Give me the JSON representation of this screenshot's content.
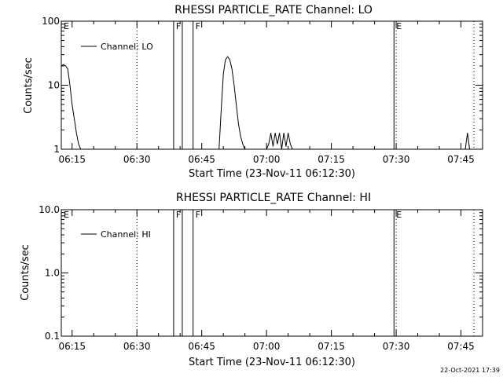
{
  "chart_data": [
    {
      "type": "line",
      "title": "RHESSI PARTICLE_RATE Channel: LO",
      "xlabel": "Start Time (23-Nov-11 06:12:30)",
      "ylabel": "Counts/sec",
      "yscale": "log",
      "ylim": [
        1,
        100
      ],
      "xlim": [
        "06:12:30",
        "07:50:00"
      ],
      "yticks": [
        "1",
        "10",
        "100"
      ],
      "xticks": [
        "06:15",
        "06:30",
        "06:45",
        "07:00",
        "07:15",
        "07:30",
        "07:45"
      ],
      "legend": {
        "label": "Channel: LO",
        "position": "top-left"
      },
      "series": [
        {
          "name": "Channel: LO",
          "x": [
            "06:12:30",
            "06:13:00",
            "06:13:30",
            "06:14:00",
            "06:14:30",
            "06:15:00",
            "06:15:30",
            "06:16:00",
            "06:16:30",
            "06:17:00",
            "06:49:00",
            "06:49:30",
            "06:50:00",
            "06:50:30",
            "06:51:00",
            "06:51:30",
            "06:52:00",
            "06:52:30",
            "06:53:00",
            "06:53:30",
            "06:54:00",
            "06:54:30",
            "06:55:00",
            "07:00:00",
            "07:00:30",
            "07:01:00",
            "07:01:30",
            "07:02:00",
            "07:02:30",
            "07:03:00",
            "07:03:30",
            "07:04:00",
            "07:04:30",
            "07:05:00",
            "07:05:30",
            "07:06:00",
            "07:46:00",
            "07:46:30",
            "07:47:00"
          ],
          "y": [
            20,
            21,
            20,
            18,
            10,
            5,
            3,
            1.8,
            1.2,
            1,
            1,
            4,
            15,
            25,
            28,
            25,
            18,
            10,
            5,
            2.5,
            1.6,
            1.2,
            1,
            1,
            1.2,
            1.8,
            1.1,
            1.8,
            1.2,
            1.8,
            1,
            1.8,
            1.1,
            1.8,
            1.2,
            1,
            1,
            1.8,
            1
          ]
        }
      ],
      "markers": [
        {
          "time": "06:38:30",
          "label": "F",
          "style": "solid"
        },
        {
          "time": "06:40:30",
          "label": "",
          "style": "solid"
        },
        {
          "time": "06:43:00",
          "label": "F",
          "style": "solid"
        },
        {
          "time": "07:29:30",
          "label": "E",
          "style": "solid"
        },
        {
          "time": "06:12:30",
          "label": "E",
          "style": "none"
        },
        {
          "time": "06:30:00",
          "label": "",
          "style": "dotted"
        },
        {
          "time": "07:30:00",
          "label": "",
          "style": "dotted"
        },
        {
          "time": "07:48:00",
          "label": "",
          "style": "dotted"
        }
      ]
    },
    {
      "type": "line",
      "title": "RHESSI PARTICLE_RATE Channel: HI",
      "xlabel": "Start Time (23-Nov-11 06:12:30)",
      "ylabel": "Counts/sec",
      "yscale": "log",
      "ylim": [
        0.1,
        10
      ],
      "xlim": [
        "06:12:30",
        "07:50:00"
      ],
      "yticks": [
        "0.1",
        "1.0",
        "10.0"
      ],
      "xticks": [
        "06:15",
        "06:30",
        "06:45",
        "07:00",
        "07:15",
        "07:30",
        "07:45"
      ],
      "legend": {
        "label": "Channel: HI",
        "position": "top-left"
      },
      "series": [
        {
          "name": "Channel: HI",
          "x": [],
          "y": []
        }
      ],
      "markers": [
        {
          "time": "06:38:30",
          "label": "F",
          "style": "solid"
        },
        {
          "time": "06:40:30",
          "label": "",
          "style": "solid"
        },
        {
          "time": "06:43:00",
          "label": "F",
          "style": "solid"
        },
        {
          "time": "07:29:30",
          "label": "E",
          "style": "solid"
        },
        {
          "time": "06:12:30",
          "label": "E",
          "style": "none"
        },
        {
          "time": "06:30:00",
          "label": "",
          "style": "dotted"
        },
        {
          "time": "07:30:00",
          "label": "",
          "style": "dotted"
        },
        {
          "time": "07:48:00",
          "label": "",
          "style": "dotted"
        }
      ]
    }
  ],
  "footer": {
    "timestamp": "22-Oct-2021 17:39"
  }
}
